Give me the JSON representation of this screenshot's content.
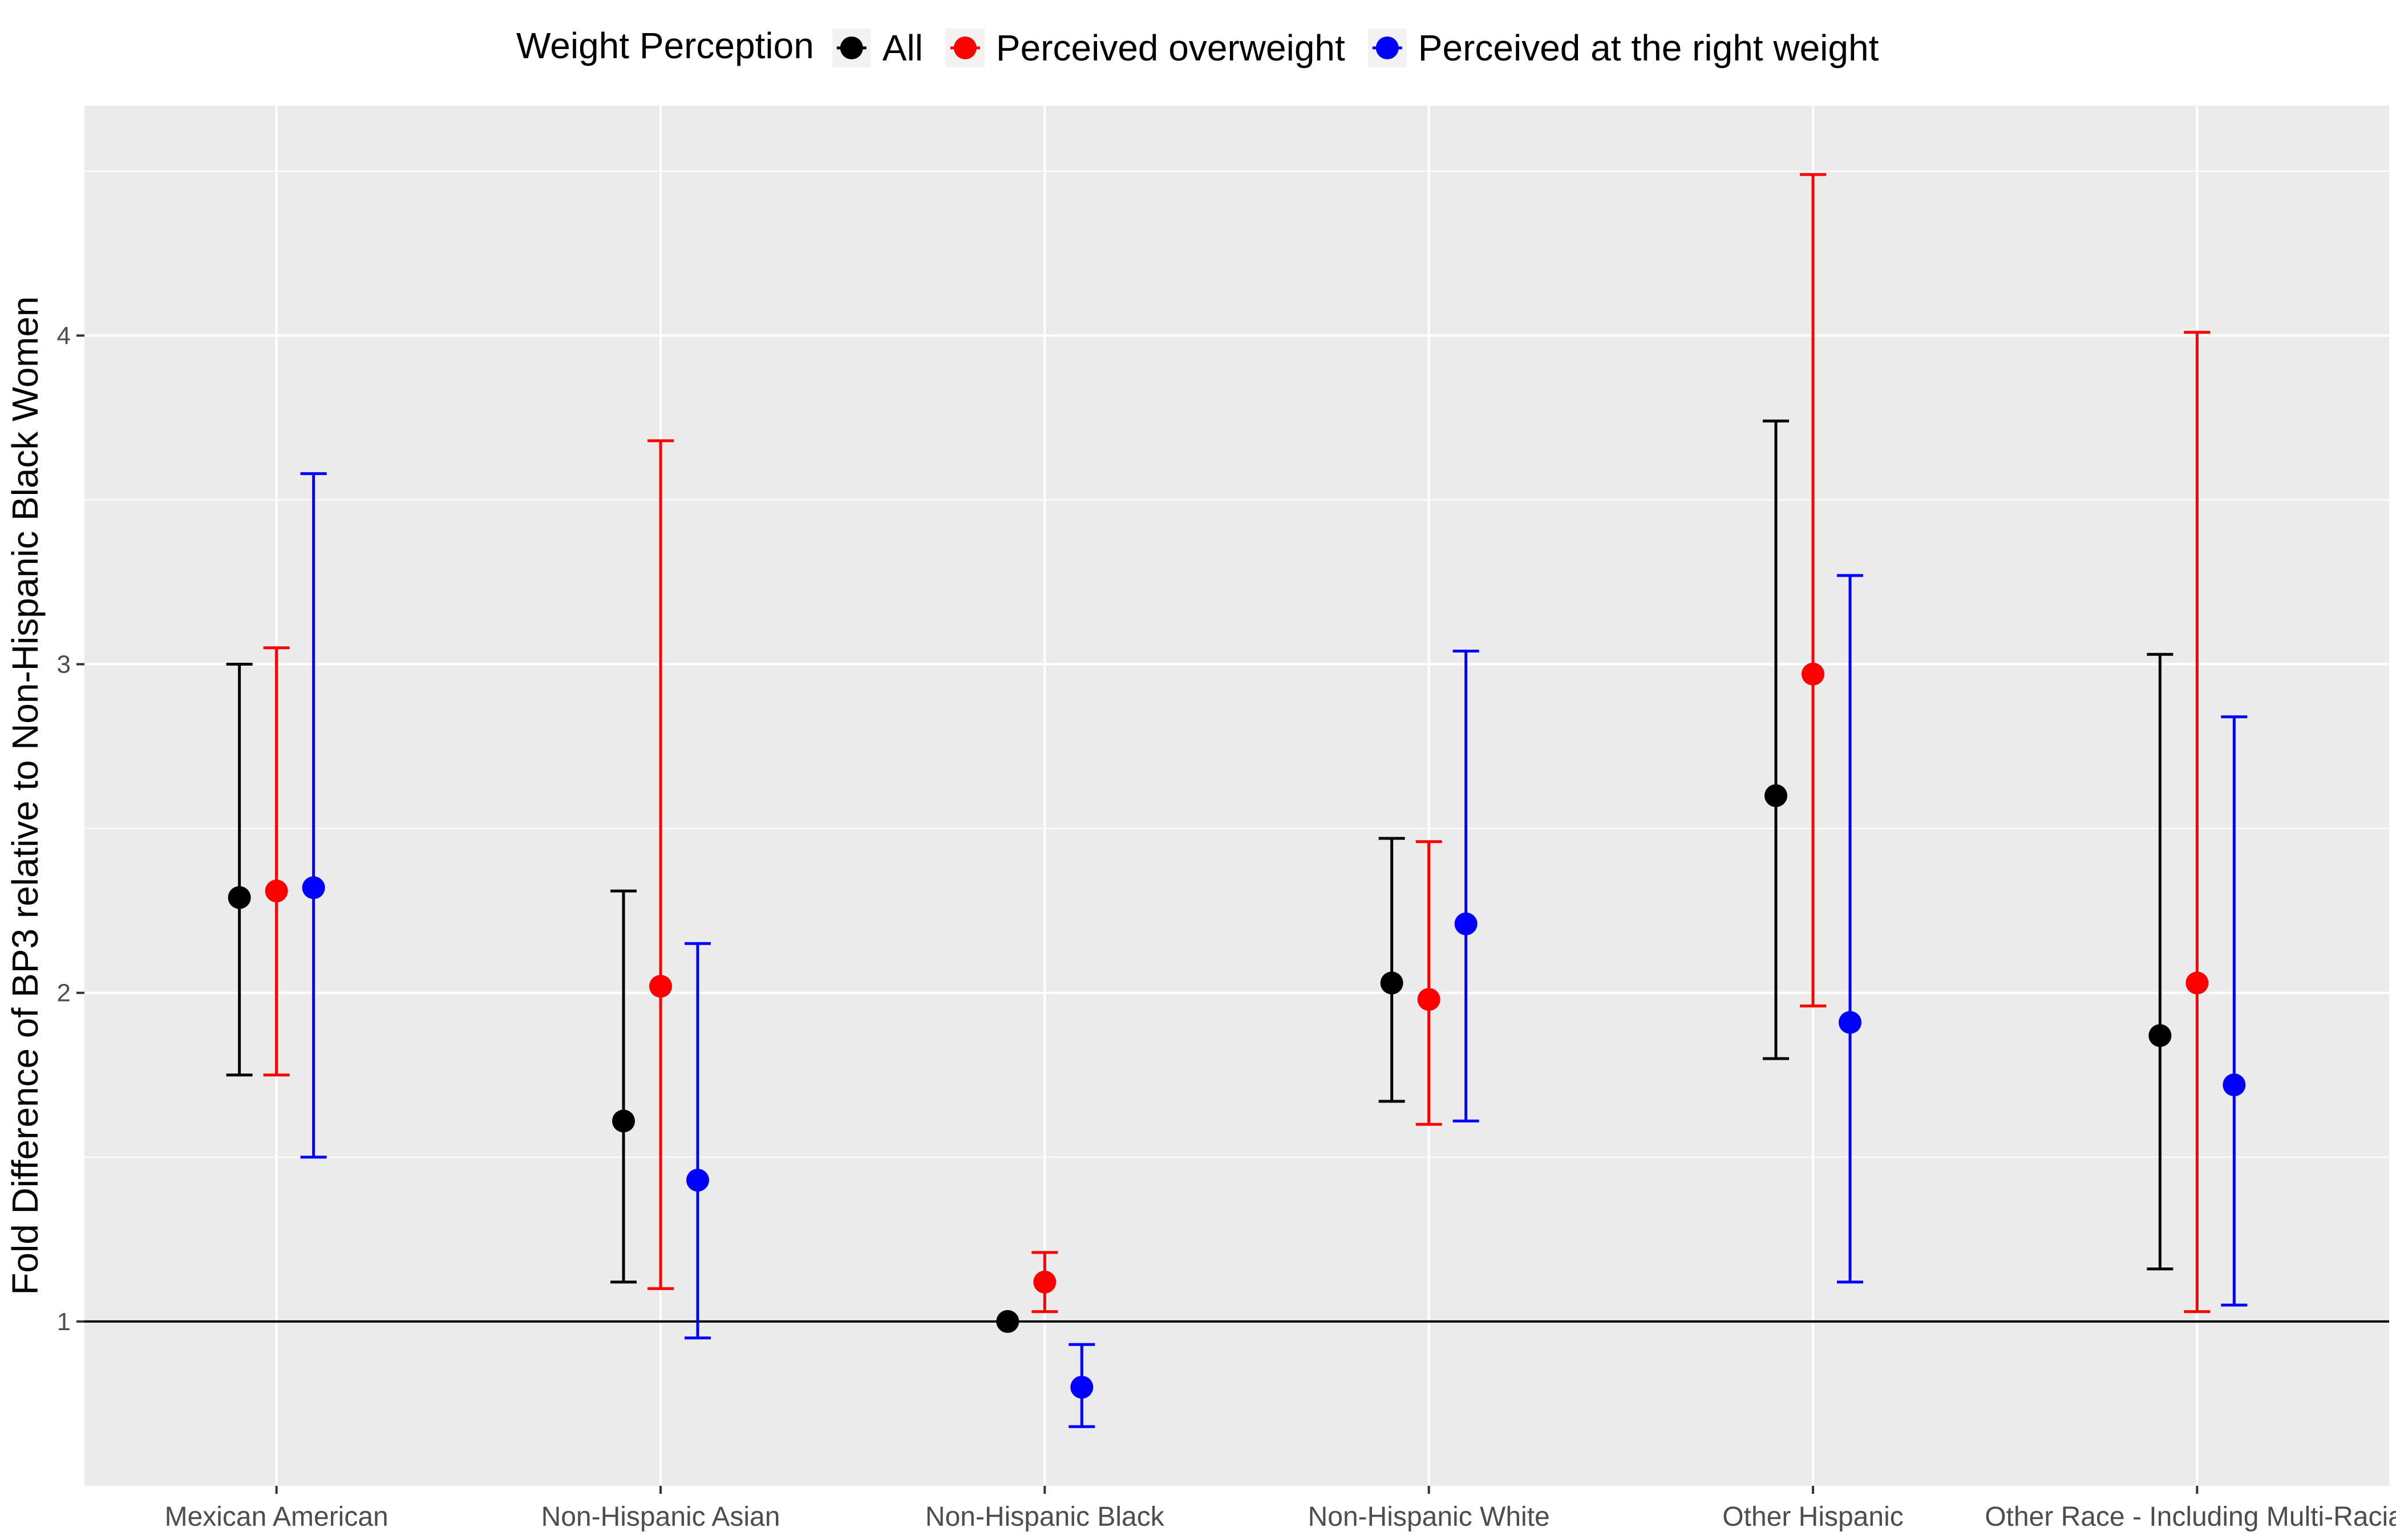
{
  "chart_data": {
    "type": "scatter",
    "title": "",
    "xlabel": "",
    "ylabel": "Fold Difference of BP3 relative to Non-Hispanic Black Women",
    "ylim": [
      0.5,
      4.7
    ],
    "y_ticks": [
      1,
      2,
      3,
      4
    ],
    "y_tick_labels": [
      "1",
      "2",
      "3",
      "4"
    ],
    "grid": true,
    "reference_line": 1,
    "legend": {
      "title": "Weight Perception",
      "placement": "top"
    },
    "categories": [
      "Mexican American",
      "Non-Hispanic Asian",
      "Non-Hispanic Black",
      "Non-Hispanic White",
      "Other Hispanic",
      "Other Race - Including Multi-Racial"
    ],
    "series": [
      {
        "name": "All",
        "color": "#000000",
        "values": [
          2.29,
          1.61,
          1.0,
          2.03,
          2.6,
          1.87
        ],
        "lower": [
          1.75,
          1.12,
          1.0,
          1.67,
          1.8,
          1.16
        ],
        "upper": [
          3.0,
          2.31,
          1.0,
          2.47,
          3.74,
          3.03
        ]
      },
      {
        "name": "Perceived overweight",
        "color": "#ff0000",
        "values": [
          2.31,
          2.02,
          1.12,
          1.98,
          2.97,
          2.03
        ],
        "lower": [
          1.75,
          1.1,
          1.03,
          1.6,
          1.96,
          1.03
        ],
        "upper": [
          3.05,
          3.68,
          1.21,
          2.46,
          4.49,
          4.01
        ]
      },
      {
        "name": "Perceived at the right weight",
        "color": "#0000ff",
        "values": [
          2.32,
          1.43,
          0.8,
          2.21,
          1.91,
          1.72
        ],
        "lower": [
          1.5,
          0.95,
          0.68,
          1.61,
          1.12,
          1.05
        ],
        "upper": [
          3.58,
          2.15,
          0.93,
          3.04,
          3.27,
          2.84
        ]
      }
    ]
  }
}
